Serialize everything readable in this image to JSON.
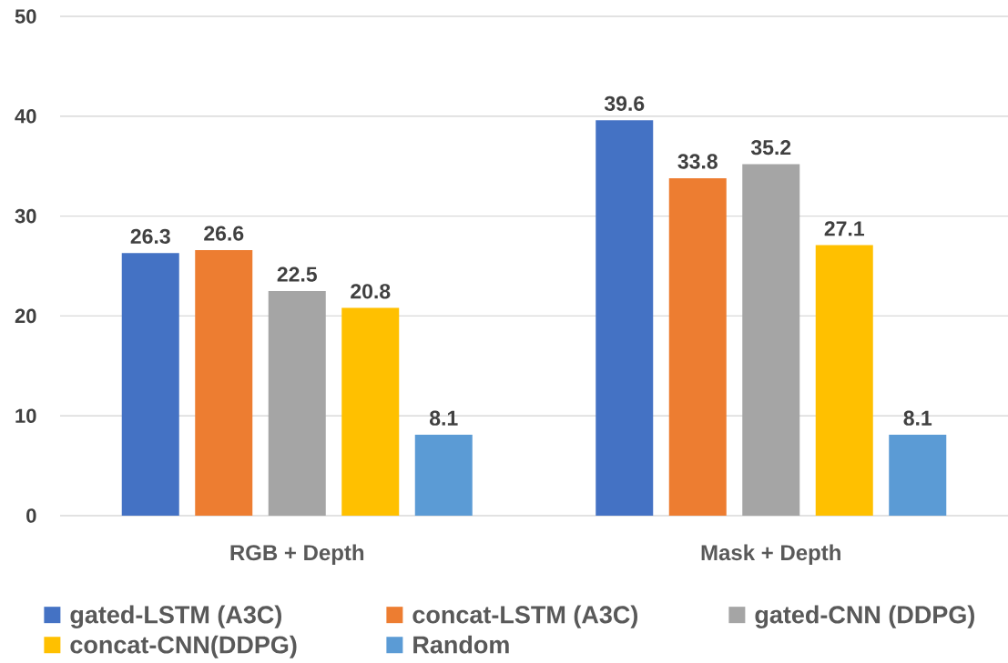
{
  "chart_data": {
    "type": "bar",
    "categories": [
      "RGB + Depth",
      "Mask + Depth"
    ],
    "series": [
      {
        "name": "gated-LSTM (A3C)",
        "color": "#4472c4",
        "values": [
          26.3,
          39.6
        ]
      },
      {
        "name": "concat-LSTM (A3C)",
        "color": "#ed7d31",
        "values": [
          26.6,
          33.8
        ]
      },
      {
        "name": "gated-CNN (DDPG)",
        "color": "#a5a5a5",
        "values": [
          22.5,
          35.2
        ]
      },
      {
        "name": "concat-CNN(DDPG)",
        "color": "#ffc000",
        "values": [
          20.8,
          27.1
        ]
      },
      {
        "name": "Random",
        "color": "#5b9bd5",
        "values": [
          8.1,
          8.1
        ]
      }
    ],
    "ylim": [
      0,
      50
    ],
    "yticks": [
      0,
      10,
      20,
      30,
      40,
      50
    ],
    "grid": "y",
    "data_labels": true,
    "legend": "bottom"
  }
}
